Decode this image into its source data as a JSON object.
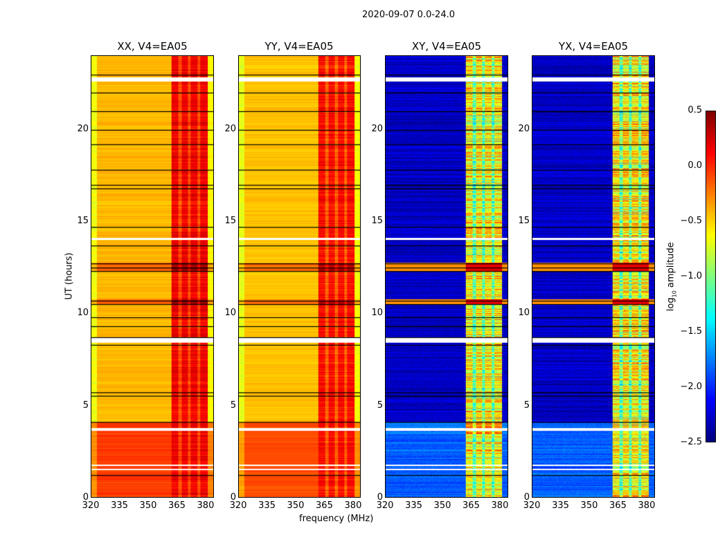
{
  "chart_data": {
    "type": "heatmap",
    "title": "2020-09-07 0.0-24.0",
    "xlabel": "frequency (MHz)",
    "ylabel": "UT (hours)",
    "xlim": [
      320,
      384
    ],
    "ylim": [
      0,
      24
    ],
    "xticks": [
      320,
      335,
      350,
      365,
      380
    ],
    "yticks": [
      0,
      5,
      10,
      15,
      20
    ],
    "colormap": "jet",
    "colorbar": {
      "label_prefix": "log",
      "label_sub": "10",
      "label_suffix": " amplitude",
      "range": [
        -2.5,
        0.5
      ],
      "ticks": [
        "0.5",
        "0.0",
        "−0.5",
        "−1.0",
        "−1.5",
        "−2.0",
        "−2.5"
      ],
      "tick_values": [
        0.5,
        0.0,
        -0.5,
        -1.0,
        -1.5,
        -2.0,
        -2.5
      ]
    },
    "panels": [
      {
        "title": "XX, V4=EA05",
        "kind": "auto",
        "base_level": -0.42,
        "band_level": 0.15,
        "low_time_level": -0.05
      },
      {
        "title": "YY, V4=EA05",
        "kind": "auto",
        "base_level": -0.45,
        "band_level": 0.1,
        "low_time_level": -0.1
      },
      {
        "title": "XY, V4=EA05",
        "kind": "cross",
        "base_level": -2.3,
        "band_level": -0.6,
        "low_time_level": -1.85
      },
      {
        "title": "YX, V4=EA05",
        "kind": "cross",
        "base_level": -2.3,
        "band_level": -0.6,
        "low_time_level": -1.85
      }
    ],
    "band_mhz": [
      362,
      381
    ],
    "band_gaps_mhz": [
      366.5,
      371.5,
      376.5
    ],
    "flagged_hours": [
      [
        22.6,
        22.85
      ],
      [
        14.0,
        14.1
      ],
      [
        8.4,
        8.65
      ],
      [
        3.6,
        3.75
      ],
      [
        1.45,
        1.55
      ],
      [
        1.7,
        1.75
      ]
    ],
    "scan_boundaries_hours": [
      23.0,
      22.0,
      21.0,
      20.0,
      19.2,
      17.8,
      17.0,
      16.8,
      14.7,
      13.7,
      12.7,
      12.5,
      12.3,
      10.7,
      10.5,
      9.8,
      9.3,
      8.7,
      8.3,
      5.7,
      5.5,
      4.1,
      1.2
    ],
    "bright_hours": [
      [
        12.3,
        12.75
      ],
      [
        10.5,
        10.75
      ]
    ]
  }
}
